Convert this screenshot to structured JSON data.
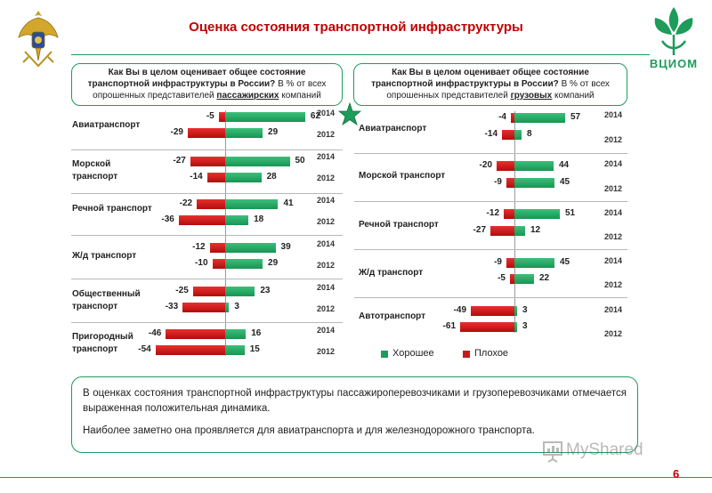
{
  "header": {
    "title": "Оценка состояния транспортной инфраструктуры",
    "logo_text": "ВЦИОМ",
    "page_number": "6"
  },
  "panels": {
    "left_question": {
      "bold": "Как Вы в целом оценивает общее состояние транспортной инфраструктуры в России?",
      "normal": " В % от всех опрошенных представителей ",
      "underlined": "пассажирских",
      "tail": " компаний"
    },
    "right_question": {
      "bold": "Как Вы в целом оценивает общее состояние транспортной инфраструктуры в России?",
      "normal": " В % от всех опрошенных представителей ",
      "underlined": "грузовых",
      "tail": " компаний"
    }
  },
  "legend": {
    "good": "Хорошее",
    "bad": "Плохое",
    "good_color": "#1d9c5a",
    "bad_color": "#c61a1a"
  },
  "summary": {
    "p1": "В оценках состояния транспортной инфраструктуры пассажироперевозчиками и грузоперевозчиками отмечается выраженная положительная динамика.",
    "p2": "Наиболее заметно она проявляется для авиатранспорта и для железнодорожного транспорта."
  },
  "watermark": "MyShared",
  "chart_data": [
    {
      "type": "bar",
      "title": "Пассажирские компании",
      "categories": [
        "Авиатранспорт",
        "Морской транспорт",
        "Речной транспорт",
        "Ж/д транспорт",
        "Общественный транспорт",
        "Пригородный транспорт"
      ],
      "years": [
        "2014",
        "2012"
      ],
      "series": [
        {
          "name": "Хорошее",
          "values_2014": [
            62,
            50,
            41,
            39,
            23,
            16
          ],
          "values_2012": [
            29,
            28,
            18,
            29,
            3,
            15
          ]
        },
        {
          "name": "Плохое",
          "values_2014": [
            -5,
            -27,
            -22,
            -12,
            -25,
            -46
          ],
          "values_2012": [
            -29,
            -14,
            -36,
            -10,
            -33,
            -54
          ]
        }
      ]
    },
    {
      "type": "bar",
      "title": "Грузовые компании",
      "categories": [
        "Авиатранспорт",
        "Морской транспорт",
        "Речной транспорт",
        "Ж/д транспорт",
        "Автотранспорт"
      ],
      "years": [
        "2014",
        "2012"
      ],
      "series": [
        {
          "name": "Хорошее",
          "values_2014": [
            57,
            44,
            51,
            45,
            3
          ],
          "values_2012": [
            8,
            45,
            12,
            22,
            3
          ]
        },
        {
          "name": "Плохое",
          "values_2014": [
            -4,
            -20,
            -12,
            -9,
            -49
          ],
          "values_2012": [
            -14,
            -9,
            -27,
            -5,
            -61
          ]
        }
      ]
    }
  ]
}
